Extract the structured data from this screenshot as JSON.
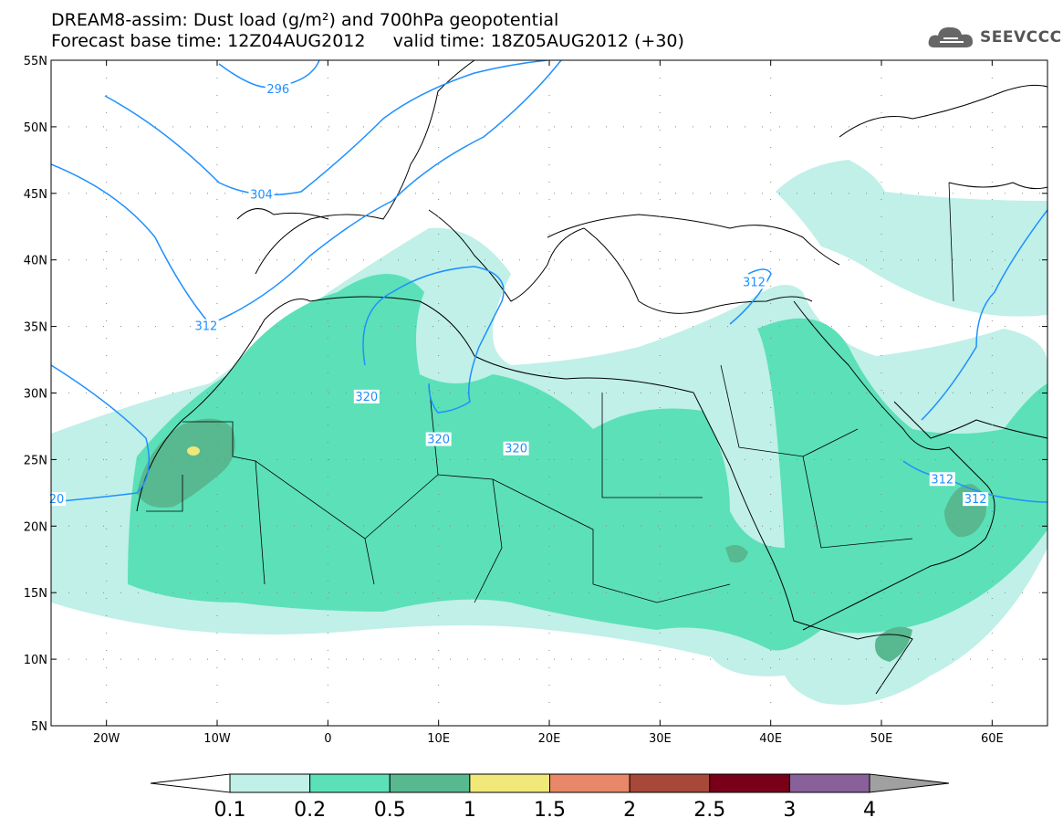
{
  "title": {
    "line1": "DREAM8-assim: Dust load (g/m²) and 700hPa geopotential",
    "line2": "Forecast base time: 12Z04AUG2012     valid time: 18Z05AUG2012 (+30)"
  },
  "logo": {
    "text": "SEEVCCC",
    "icon": "cloud-icon"
  },
  "map": {
    "lat_labels": [
      "55N",
      "50N",
      "45N",
      "40N",
      "35N",
      "30N",
      "25N",
      "20N",
      "15N",
      "10N",
      "5N"
    ],
    "lat_values": [
      55,
      50,
      45,
      40,
      35,
      30,
      25,
      20,
      15,
      10,
      5
    ],
    "lon_labels": [
      "20W",
      "10W",
      "0",
      "10E",
      "20E",
      "30E",
      "40E",
      "50E",
      "60E"
    ],
    "lon_values": [
      -20,
      -10,
      0,
      10,
      20,
      30,
      40,
      50,
      60
    ],
    "extent": {
      "lon_min": -25,
      "lon_max": 65,
      "lat_min": 5,
      "lat_max": 55
    },
    "contour_labels": [
      {
        "text": "296",
        "lon": -4.5,
        "lat": 52.8
      },
      {
        "text": "304",
        "lon": -6,
        "lat": 44.9
      },
      {
        "text": "312",
        "lon": -11,
        "lat": 35
      },
      {
        "text": "320",
        "lon": 3.5,
        "lat": 29.7
      },
      {
        "text": "320",
        "lon": 10,
        "lat": 26.5
      },
      {
        "text": "320",
        "lon": 17,
        "lat": 25.8
      },
      {
        "text": "312",
        "lon": 38.5,
        "lat": 38.3
      },
      {
        "text": "312",
        "lon": 55.5,
        "lat": 23.5
      },
      {
        "text": "312",
        "lon": 58.5,
        "lat": 22
      },
      {
        "text": "20",
        "lon": -24.5,
        "lat": 22
      }
    ]
  },
  "colorbar": {
    "labels": [
      "0.1",
      "0.2",
      "0.5",
      "1",
      "1.5",
      "2",
      "2.5",
      "3",
      "4"
    ],
    "colors": [
      "#c0f0e8",
      "#5ce0b8",
      "#58b890",
      "#f0e878",
      "#e88868",
      "#a84838",
      "#780018",
      "#88609a"
    ],
    "under_color": "#ffffff",
    "over_color": "#a0a0a0"
  }
}
